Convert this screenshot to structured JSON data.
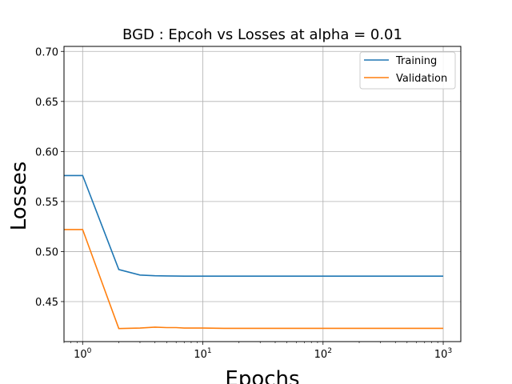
{
  "chart_data": {
    "type": "line",
    "title": "BGD : Epcoh vs Losses at alpha = 0.01",
    "xlabel": "Epochs",
    "ylabel": "Losses",
    "xscale": "log",
    "xlim": [
      0.7,
      1400
    ],
    "ylim": [
      0.41,
      0.705
    ],
    "x_ticks": [
      {
        "value": 1,
        "base": "10",
        "exp": "0"
      },
      {
        "value": 10,
        "base": "10",
        "exp": "1"
      },
      {
        "value": 100,
        "base": "10",
        "exp": "2"
      },
      {
        "value": 1000,
        "base": "10",
        "exp": "3"
      }
    ],
    "y_ticks": [
      "0.45",
      "0.50",
      "0.55",
      "0.60",
      "0.65",
      "0.70"
    ],
    "grid": true,
    "legend_position": "top-right",
    "x": [
      0,
      1,
      2,
      3,
      4,
      5,
      6,
      7,
      8,
      10,
      15,
      20,
      50,
      100,
      200,
      500,
      1000
    ],
    "series": [
      {
        "name": "Training",
        "color": "#1f77b4",
        "values": [
          0.576,
          0.576,
          0.482,
          0.4765,
          0.4758,
          0.4756,
          0.4755,
          0.4754,
          0.4754,
          0.4754,
          0.4754,
          0.4754,
          0.4754,
          0.4754,
          0.4754,
          0.4754,
          0.4754
        ]
      },
      {
        "name": "Validation",
        "color": "#ff7f0e",
        "values": [
          0.522,
          0.522,
          0.423,
          0.4235,
          0.4245,
          0.424,
          0.424,
          0.4235,
          0.4235,
          0.4235,
          0.4233,
          0.4233,
          0.4233,
          0.4233,
          0.4233,
          0.4233,
          0.4233
        ]
      }
    ]
  }
}
